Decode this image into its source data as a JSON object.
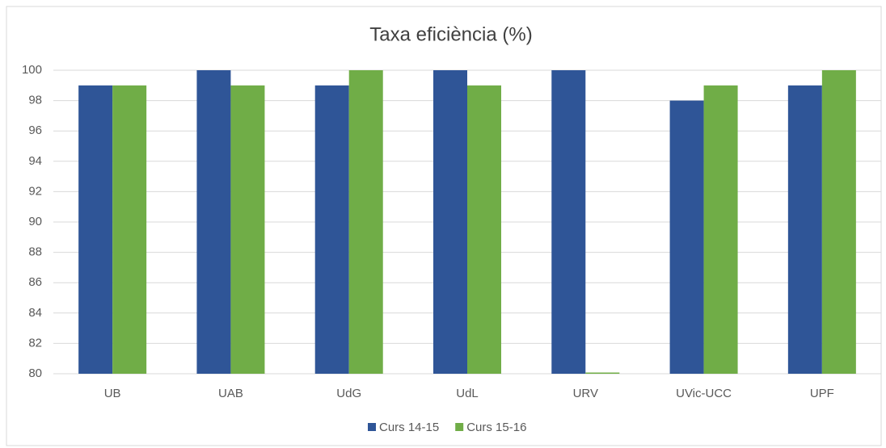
{
  "chart_data": {
    "type": "bar",
    "title": "Taxa eficiència (%)",
    "categories": [
      "UB",
      "UAB",
      "UdG",
      "UdL",
      "URV",
      "UVic-UCC",
      "UPF"
    ],
    "series": [
      {
        "name": "Curs 14-15",
        "color": "#2f5597",
        "values": [
          99,
          100,
          99,
          100,
          100,
          98,
          99
        ]
      },
      {
        "name": "Curs 15-16",
        "color": "#70ad47",
        "values": [
          99,
          99,
          100,
          99,
          80,
          99,
          100
        ]
      }
    ],
    "ylim": [
      80,
      100
    ],
    "yticks": [
      80,
      82,
      84,
      86,
      88,
      90,
      92,
      94,
      96,
      98,
      100
    ],
    "grid": true,
    "legend": "bottom"
  }
}
